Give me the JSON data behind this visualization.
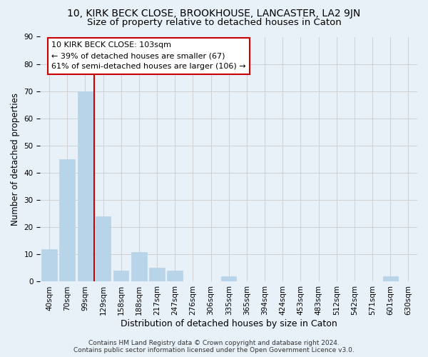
{
  "title": "10, KIRK BECK CLOSE, BROOKHOUSE, LANCASTER, LA2 9JN",
  "subtitle": "Size of property relative to detached houses in Caton",
  "xlabel": "Distribution of detached houses by size in Caton",
  "ylabel": "Number of detached properties",
  "bar_labels": [
    "40sqm",
    "70sqm",
    "99sqm",
    "129sqm",
    "158sqm",
    "188sqm",
    "217sqm",
    "247sqm",
    "276sqm",
    "306sqm",
    "335sqm",
    "365sqm",
    "394sqm",
    "424sqm",
    "453sqm",
    "483sqm",
    "512sqm",
    "542sqm",
    "571sqm",
    "601sqm",
    "630sqm"
  ],
  "bar_values": [
    12,
    45,
    70,
    24,
    4,
    11,
    5,
    4,
    0,
    0,
    2,
    0,
    0,
    0,
    0,
    0,
    0,
    0,
    0,
    2,
    0
  ],
  "bar_color": "#b8d4e8",
  "bar_edgecolor": "#b8d4e8",
  "vline_x_index": 2,
  "vline_color": "#cc0000",
  "annotation_text": "10 KIRK BECK CLOSE: 103sqm\n← 39% of detached houses are smaller (67)\n61% of semi-detached houses are larger (106) →",
  "ylim": [
    0,
    90
  ],
  "yticks": [
    0,
    10,
    20,
    30,
    40,
    50,
    60,
    70,
    80,
    90
  ],
  "grid_color": "#cccccc",
  "bg_color": "#e8f0f8",
  "footer": "Contains HM Land Registry data © Crown copyright and database right 2024.\nContains public sector information licensed under the Open Government Licence v3.0.",
  "title_fontsize": 10,
  "subtitle_fontsize": 9.5,
  "xlabel_fontsize": 9,
  "ylabel_fontsize": 8.5,
  "tick_fontsize": 7.5,
  "annotation_fontsize": 8,
  "footer_fontsize": 6.5
}
